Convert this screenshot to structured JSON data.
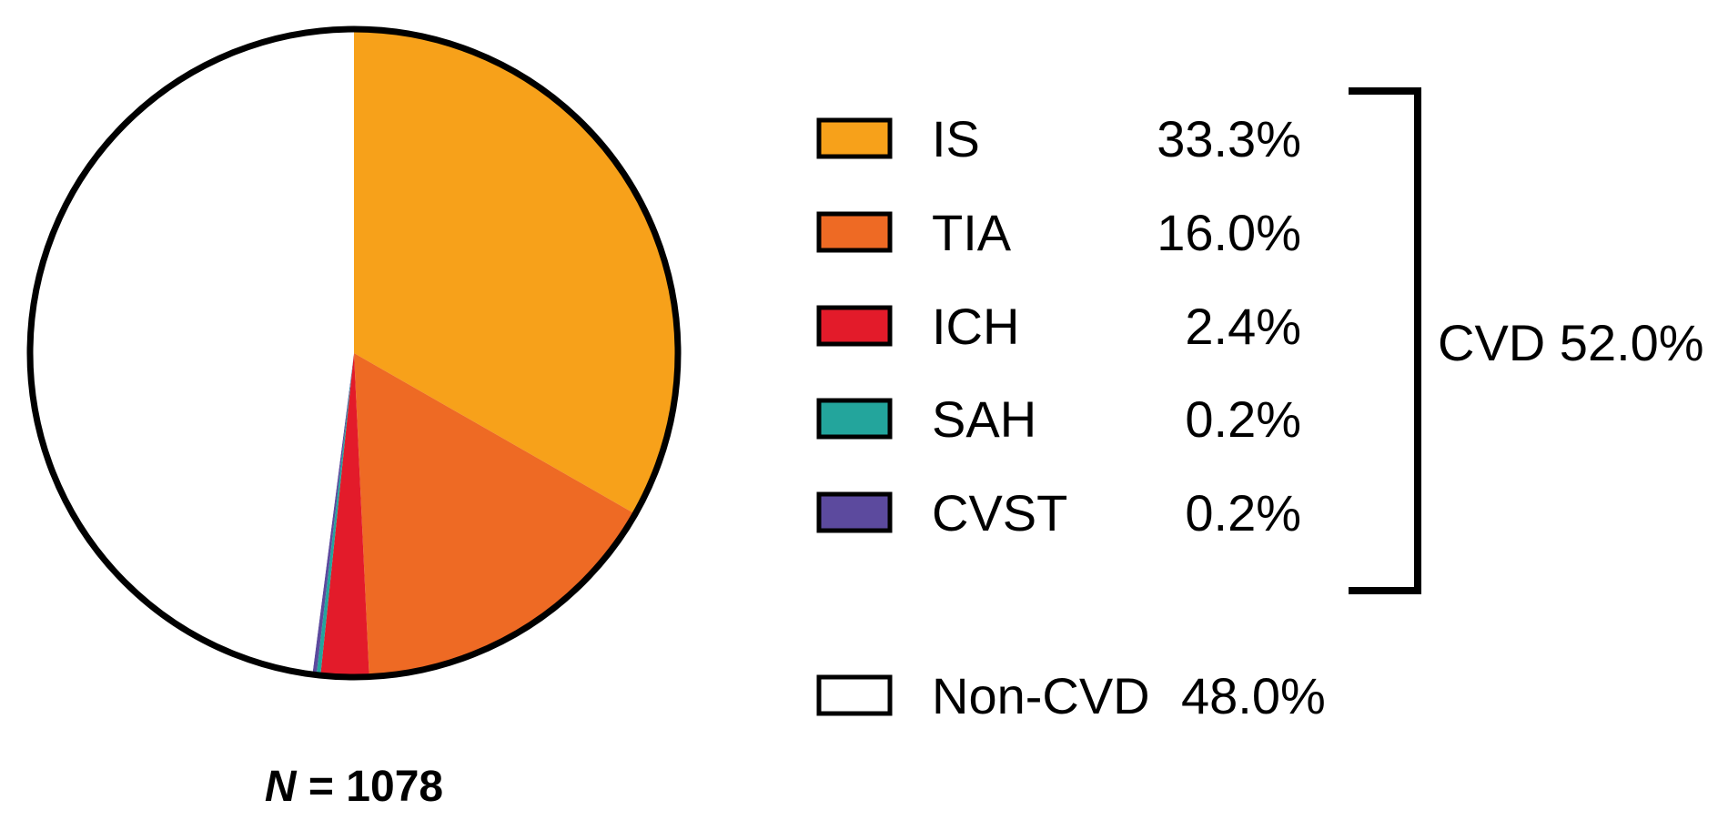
{
  "chart_data": {
    "type": "pie",
    "n_label": {
      "symbol": "N",
      "equals": " = ",
      "value": "1078"
    },
    "slices": [
      {
        "name": "IS",
        "value": 33.3,
        "label": "33.3%",
        "color": "#F7A11A"
      },
      {
        "name": "TIA",
        "value": 16.0,
        "label": "16.0%",
        "color": "#EE6A24"
      },
      {
        "name": "ICH",
        "value": 2.4,
        "label": "2.4%",
        "color": "#E31B2A"
      },
      {
        "name": "SAH",
        "value": 0.2,
        "label": "0.2%",
        "color": "#23A59C"
      },
      {
        "name": "CVST",
        "value": 0.2,
        "label": "0.2%",
        "color": "#5C4A9E"
      },
      {
        "name": "Non-CVD",
        "value": 48.0,
        "label": "48.0%",
        "color": "#FFFFFF"
      }
    ],
    "group": {
      "label": "CVD 52.0%",
      "members": [
        "IS",
        "TIA",
        "ICH",
        "SAH",
        "CVST"
      ]
    },
    "start_angle": "12 o'clock",
    "direction": "clockwise",
    "legend_position": "right"
  }
}
